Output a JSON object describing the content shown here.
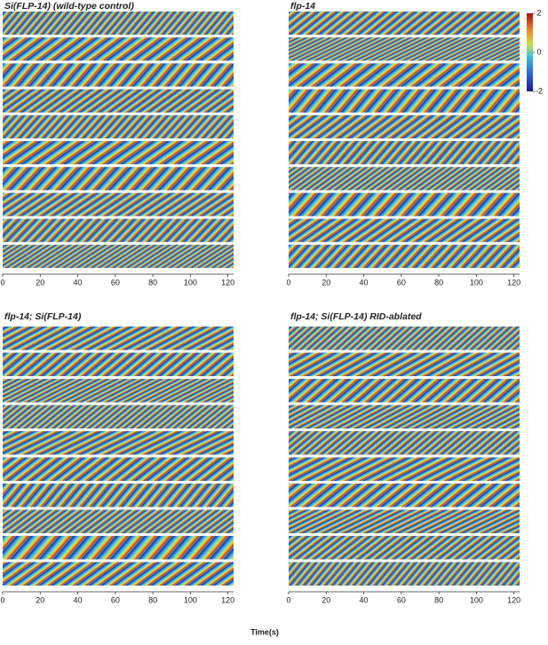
{
  "chart_data": [
    {
      "type": "kymograph",
      "title": "Si(FLP-14) (wild-type control)",
      "xlim": [
        0,
        123
      ],
      "xticks": [
        0,
        20,
        40,
        60,
        80,
        100,
        120
      ],
      "strips": 10
    },
    {
      "type": "kymograph",
      "title": "flp-14",
      "xlim": [
        0,
        123
      ],
      "xticks": [
        0,
        20,
        40,
        60,
        80,
        100,
        120
      ],
      "strips": 10,
      "colorbar": {
        "lim": [
          -2,
          2
        ],
        "ticks": [
          -2,
          0,
          2
        ]
      }
    },
    {
      "type": "kymograph",
      "title": "flp-14; Si(FLP-14)",
      "xlim": [
        0,
        123
      ],
      "xticks": [
        0,
        20,
        40,
        60,
        80,
        100,
        120
      ],
      "strips": 10
    },
    {
      "type": "kymograph",
      "title": "flp-14; Si(FLP-14) RID-ablated",
      "xlim": [
        0,
        123
      ],
      "xticks": [
        0,
        20,
        40,
        60,
        80,
        100,
        120
      ],
      "strips": 10
    }
  ],
  "xlabel": "Time(s)"
}
